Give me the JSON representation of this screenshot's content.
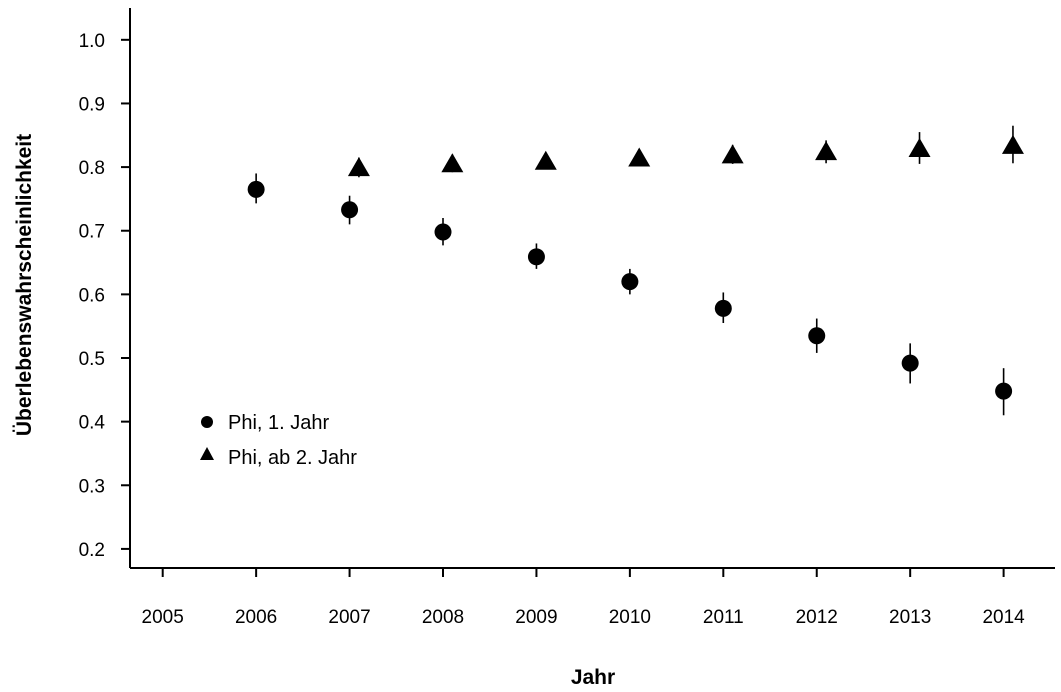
{
  "chart_data": {
    "type": "scatter",
    "xlabel": "Jahr",
    "ylabel": "Überlebenswahrscheinlichkeit",
    "xlim": [
      2004.65,
      2014.55
    ],
    "ylim": [
      0.17,
      1.05
    ],
    "x_ticks": [
      2005,
      2006,
      2007,
      2008,
      2009,
      2010,
      2011,
      2012,
      2013,
      2014
    ],
    "y_ticks": [
      0.2,
      0.3,
      0.4,
      0.5,
      0.6,
      0.7,
      0.8,
      0.9,
      1.0
    ],
    "y_tick_labels": [
      "0.2",
      "0.3",
      "0.4",
      "0.5",
      "0.6",
      "0.7",
      "0.8",
      "0.9",
      "1.0"
    ],
    "error_bars": true,
    "legend_position": "left",
    "grid": false,
    "series": [
      {
        "name": "Phi, 1. Jahr",
        "marker": "circle",
        "color": "#000000",
        "x": [
          2006,
          2007,
          2008,
          2009,
          2010,
          2011,
          2012,
          2013,
          2014
        ],
        "y": [
          0.765,
          0.733,
          0.698,
          0.659,
          0.62,
          0.578,
          0.535,
          0.492,
          0.448
        ],
        "y_lower": [
          0.743,
          0.71,
          0.677,
          0.64,
          0.6,
          0.555,
          0.508,
          0.46,
          0.41
        ],
        "y_upper": [
          0.79,
          0.755,
          0.72,
          0.68,
          0.64,
          0.603,
          0.562,
          0.523,
          0.484
        ]
      },
      {
        "name": "Phi, ab 2. Jahr",
        "marker": "triangle",
        "color": "#000000",
        "x": [
          2007.1,
          2008.1,
          2009.1,
          2010.1,
          2011.1,
          2012.1,
          2013.1,
          2014.1
        ],
        "y": [
          0.8,
          0.806,
          0.81,
          0.815,
          0.82,
          0.825,
          0.83,
          0.835
        ],
        "y_lower": [
          0.784,
          0.792,
          0.797,
          0.801,
          0.805,
          0.806,
          0.805,
          0.806
        ],
        "y_upper": [
          0.815,
          0.82,
          0.823,
          0.828,
          0.835,
          0.842,
          0.855,
          0.865
        ]
      }
    ]
  }
}
